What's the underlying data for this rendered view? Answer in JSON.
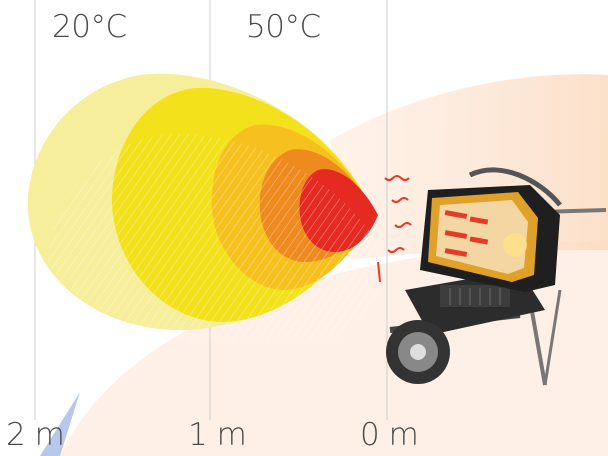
{
  "temperature_labels": {
    "low": "20°C",
    "high": "50°C"
  },
  "distance_labels": {
    "far": "2 m",
    "mid": "1 m",
    "near": "0 m"
  },
  "colors": {
    "zone_outer": "#f6ee9a",
    "zone_yellow": "#f4e21c",
    "zone_gold": "#f7c11e",
    "zone_orange": "#f08a1e",
    "zone_red": "#e52a22",
    "background_glow": "#fde3cf",
    "heater_body": "#2b2b2b",
    "heater_accent": "#e0a12a"
  },
  "icons": {
    "heater": "infrared-diesel-heater-icon"
  }
}
